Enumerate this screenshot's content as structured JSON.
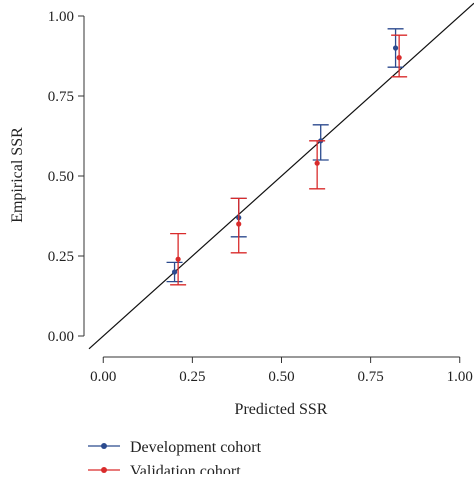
{
  "chart_data": {
    "type": "scatter",
    "title": "",
    "xlabel": "Predicted SSR",
    "ylabel": "Empirical SSR",
    "xlim": [
      -0.04,
      1.04
    ],
    "ylim": [
      -0.05,
      1.05
    ],
    "x_ticks": [
      "0.00",
      "0.25",
      "0.50",
      "0.75",
      "1.00"
    ],
    "y_ticks": [
      "0.00",
      "0.25",
      "0.50",
      "0.75",
      "1.00"
    ],
    "grid": false,
    "reference_line": "diagonal",
    "legend_position": "bottom",
    "series": [
      {
        "name": "Development cohort",
        "color": "#2b4a8e",
        "points": [
          {
            "x": 0.2,
            "y": 0.2,
            "lower": 0.17,
            "upper": 0.23
          },
          {
            "x": 0.38,
            "y": 0.37,
            "lower": 0.31,
            "upper": 0.43
          },
          {
            "x": 0.61,
            "y": 0.61,
            "lower": 0.55,
            "upper": 0.66
          },
          {
            "x": 0.82,
            "y": 0.9,
            "lower": 0.84,
            "upper": 0.96
          }
        ]
      },
      {
        "name": "Validation cohort",
        "color": "#d92b2b",
        "points": [
          {
            "x": 0.21,
            "y": 0.24,
            "lower": 0.16,
            "upper": 0.32
          },
          {
            "x": 0.38,
            "y": 0.35,
            "lower": 0.26,
            "upper": 0.43
          },
          {
            "x": 0.6,
            "y": 0.54,
            "lower": 0.46,
            "upper": 0.61
          },
          {
            "x": 0.83,
            "y": 0.87,
            "lower": 0.81,
            "upper": 0.94
          }
        ]
      }
    ]
  }
}
